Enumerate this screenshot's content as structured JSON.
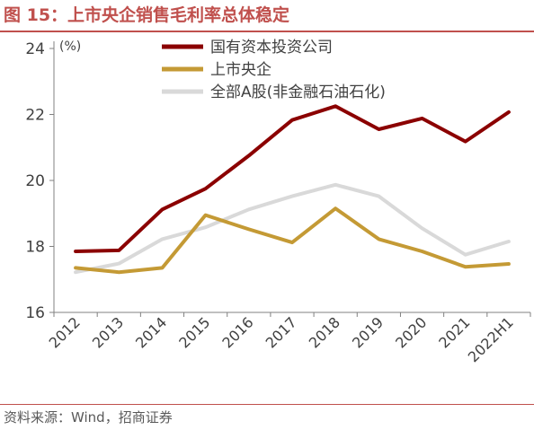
{
  "figure": {
    "title": "图 15：上市央企销售毛利率总体稳定",
    "source": "资料来源：Wind，招商证券"
  },
  "chart_data": {
    "type": "line",
    "categories": [
      "2012",
      "2013",
      "2014",
      "2015",
      "2016",
      "2017",
      "2018",
      "2019",
      "2020",
      "2021",
      "2022H1"
    ],
    "series": [
      {
        "name": "国有资本投资公司",
        "color": "#8b0000",
        "values": [
          17.85,
          17.88,
          19.12,
          19.75,
          20.75,
          21.83,
          22.25,
          21.55,
          21.88,
          21.18,
          22.07
        ]
      },
      {
        "name": "上市央企",
        "color": "#c49a35",
        "values": [
          17.35,
          17.22,
          17.35,
          18.95,
          18.52,
          18.12,
          19.15,
          18.22,
          17.85,
          17.38,
          17.47
        ]
      },
      {
        "name": "全部A股(非金融石油石化)",
        "color": "#d9d9d9",
        "values": [
          17.22,
          17.48,
          18.22,
          18.58,
          19.12,
          19.52,
          19.87,
          19.52,
          18.55,
          17.75,
          18.15
        ]
      }
    ],
    "y_unit": "(%)",
    "ylim": [
      16,
      24
    ],
    "y_ticks": [
      16,
      18,
      20,
      22,
      24
    ],
    "grid": false,
    "legend_position": "top"
  }
}
